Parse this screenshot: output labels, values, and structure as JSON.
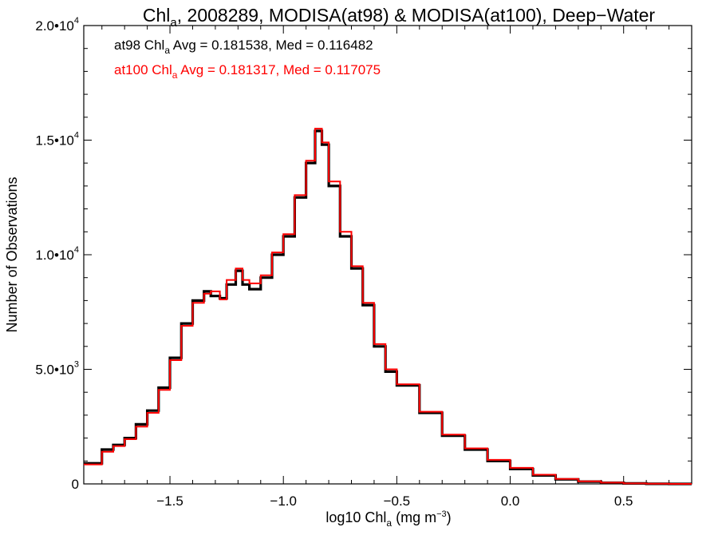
{
  "chart_data": {
    "type": "line",
    "title": {
      "prefix": "Chl",
      "sub": "a",
      "suffix": ", 2008289, MODISA(at98) & MODISA(at100), Deep−Water"
    },
    "xlabel": {
      "prefix": "log10 Chl",
      "sub": "a",
      "suffix": " (mg m",
      "sup": "−3",
      "end": ")"
    },
    "ylabel": "Number of Observations",
    "xlim": [
      -1.88,
      0.8
    ],
    "ylim": [
      0,
      20000
    ],
    "x_ticks": [
      {
        "value": -1.5,
        "label": "−1.5"
      },
      {
        "value": -1.0,
        "label": "−1.0"
      },
      {
        "value": -0.5,
        "label": "−0.5"
      },
      {
        "value": 0.0,
        "label": "0.0"
      },
      {
        "value": 0.5,
        "label": "0.5"
      }
    ],
    "y_ticks": [
      {
        "value": 0,
        "base": "0",
        "exp": ""
      },
      {
        "value": 5000,
        "base": "5.0•10",
        "exp": "3"
      },
      {
        "value": 10000,
        "base": "1.0•10",
        "exp": "4"
      },
      {
        "value": 15000,
        "base": "1.5•10",
        "exp": "4"
      },
      {
        "value": 20000,
        "base": "2.0•10",
        "exp": "4"
      }
    ],
    "annotations": [
      {
        "pre": "at98 Chl",
        "sub": "a",
        "post": " Avg = 0.181538, Med = 0.116482",
        "color": "#000000"
      },
      {
        "pre": "at100 Chl",
        "sub": "a",
        "post": " Avg = 0.181317, Med = 0.117075",
        "color": "#ff0000"
      }
    ],
    "grid": false,
    "step": true,
    "series": [
      {
        "color": "#000000",
        "x": [
          -1.88,
          -1.8,
          -1.75,
          -1.7,
          -1.65,
          -1.6,
          -1.55,
          -1.5,
          -1.45,
          -1.4,
          -1.35,
          -1.32,
          -1.28,
          -1.25,
          -1.21,
          -1.18,
          -1.15,
          -1.1,
          -1.05,
          -1.0,
          -0.95,
          -0.9,
          -0.86,
          -0.83,
          -0.8,
          -0.75,
          -0.7,
          -0.65,
          -0.6,
          -0.55,
          -0.5,
          -0.4,
          -0.3,
          -0.2,
          -0.1,
          0.0,
          0.1,
          0.2,
          0.3,
          0.4,
          0.5,
          0.6,
          0.7,
          0.8
        ],
        "y": [
          900,
          1500,
          1700,
          2000,
          2600,
          3200,
          4200,
          5500,
          7000,
          8000,
          8400,
          8200,
          8100,
          8700,
          9300,
          8700,
          8500,
          9000,
          10000,
          10800,
          12500,
          14000,
          15400,
          14800,
          13000,
          10800,
          9400,
          7800,
          6000,
          4900,
          4300,
          3100,
          2100,
          1500,
          1000,
          650,
          370,
          200,
          100,
          50,
          20,
          5,
          1,
          0
        ]
      },
      {
        "color": "#ff0000",
        "x": [
          -1.88,
          -1.8,
          -1.75,
          -1.7,
          -1.65,
          -1.6,
          -1.55,
          -1.5,
          -1.45,
          -1.4,
          -1.35,
          -1.32,
          -1.28,
          -1.25,
          -1.21,
          -1.18,
          -1.15,
          -1.1,
          -1.05,
          -1.0,
          -0.95,
          -0.9,
          -0.86,
          -0.83,
          -0.8,
          -0.75,
          -0.7,
          -0.65,
          -0.6,
          -0.55,
          -0.5,
          -0.4,
          -0.3,
          -0.2,
          -0.1,
          0.0,
          0.1,
          0.2,
          0.3,
          0.4,
          0.5,
          0.6,
          0.7,
          0.8
        ],
        "y": [
          850,
          1400,
          1650,
          1950,
          2500,
          3100,
          4100,
          5400,
          6900,
          7900,
          8300,
          8400,
          8050,
          8900,
          9400,
          8900,
          8750,
          9100,
          10100,
          10900,
          12600,
          14100,
          15500,
          14900,
          13200,
          11000,
          9500,
          7900,
          6100,
          5000,
          4350,
          3150,
          2150,
          1550,
          1050,
          700,
          400,
          220,
          110,
          55,
          22,
          6,
          1,
          0
        ]
      }
    ]
  }
}
